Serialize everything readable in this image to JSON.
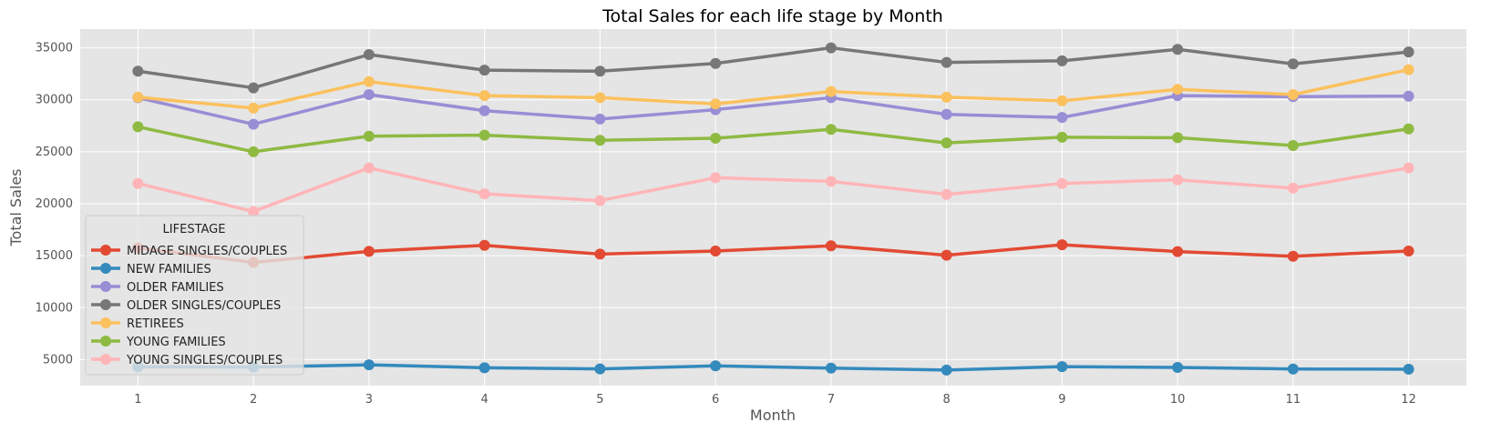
{
  "chart_data": {
    "type": "line",
    "title": "Total Sales for each life stage by Month",
    "xlabel": "Month",
    "ylabel": "Total Sales",
    "x": [
      1,
      2,
      3,
      4,
      5,
      6,
      7,
      8,
      9,
      10,
      11,
      12
    ],
    "xlim": [
      0.5,
      12.5
    ],
    "ylim": [
      2500,
      36800
    ],
    "yticks": [
      5000,
      10000,
      15000,
      20000,
      25000,
      30000,
      35000
    ],
    "grid": true,
    "legend": {
      "title": "LIFESTAGE",
      "placement": "lower-left"
    },
    "background_color": "#e5e5e5",
    "series": [
      {
        "name": "MIDAGE SINGLES/COUPLES",
        "color": "#e24a33",
        "values": [
          15750,
          14350,
          15420,
          16000,
          15150,
          15450,
          15950,
          15050,
          16050,
          15400,
          14950,
          15450
        ]
      },
      {
        "name": "NEW FAMILIES",
        "color": "#348abd",
        "values": [
          4300,
          4280,
          4500,
          4220,
          4110,
          4400,
          4180,
          4000,
          4330,
          4250,
          4100,
          4080
        ]
      },
      {
        "name": "OLDER FAMILIES",
        "color": "#988ed5",
        "values": [
          30200,
          27650,
          30500,
          28950,
          28150,
          29050,
          30200,
          28600,
          28300,
          30400,
          30300,
          30350
        ]
      },
      {
        "name": "OLDER SINGLES/COUPLES",
        "color": "#777777",
        "values": [
          32750,
          31150,
          34350,
          32850,
          32750,
          33500,
          35000,
          33600,
          33750,
          34850,
          33450,
          34600
        ]
      },
      {
        "name": "RETIREES",
        "color": "#fbc15e",
        "values": [
          30250,
          29200,
          31750,
          30400,
          30200,
          29600,
          30800,
          30250,
          29900,
          31000,
          30500,
          32900
        ]
      },
      {
        "name": "YOUNG FAMILIES",
        "color": "#8eba42",
        "values": [
          27400,
          25000,
          26500,
          26600,
          26100,
          26300,
          27150,
          25850,
          26400,
          26350,
          25600,
          27200
        ]
      },
      {
        "name": "YOUNG SINGLES/COUPLES",
        "color": "#ffb5b8",
        "values": [
          21950,
          19250,
          23450,
          20950,
          20300,
          22500,
          22150,
          20900,
          21950,
          22300,
          21500,
          23450
        ]
      }
    ]
  }
}
